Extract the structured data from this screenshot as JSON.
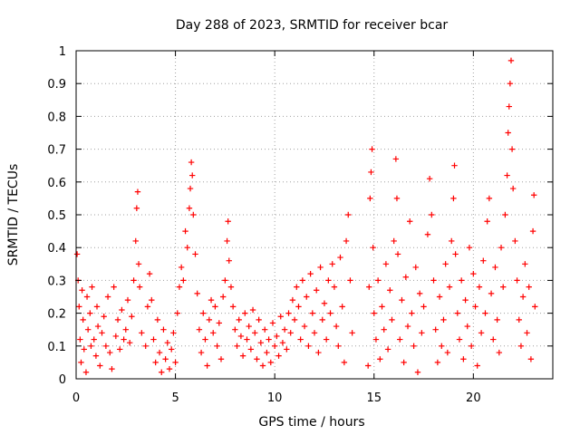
{
  "chart_data": {
    "type": "scatter",
    "title": "Day 288 of 2023, SRMTID for receiver bcar",
    "xlabel": "GPS time / hours",
    "ylabel": "SRMTID / TECUs",
    "xlim": [
      0,
      24
    ],
    "ylim": [
      0,
      1
    ],
    "xticks": [
      0,
      5,
      10,
      15,
      20
    ],
    "xtick_labels": [
      "0",
      "5",
      "10",
      "15",
      "20"
    ],
    "yticks": [
      0,
      0.1,
      0.2,
      0.3,
      0.4,
      0.5,
      0.6,
      0.7,
      0.8,
      0.9,
      1
    ],
    "ytick_labels": [
      "0",
      "0.1",
      "0.2",
      "0.3",
      "0.4",
      "0.5",
      "0.6",
      "0.7",
      "0.8",
      "0.9",
      "1"
    ],
    "grid": true,
    "marker": "+",
    "color": "#ff0000",
    "series": [
      {
        "name": "SRMTID",
        "points": [
          [
            0.05,
            0.38
          ],
          [
            0.1,
            0.3
          ],
          [
            0.15,
            0.22
          ],
          [
            0.2,
            0.12
          ],
          [
            0.25,
            0.05
          ],
          [
            0.3,
            0.27
          ],
          [
            0.35,
            0.18
          ],
          [
            0.4,
            0.09
          ],
          [
            0.5,
            0.02
          ],
          [
            0.55,
            0.25
          ],
          [
            0.6,
            0.15
          ],
          [
            0.7,
            0.2
          ],
          [
            0.75,
            0.1
          ],
          [
            0.8,
            0.28
          ],
          [
            0.9,
            0.12
          ],
          [
            1.0,
            0.07
          ],
          [
            1.05,
            0.22
          ],
          [
            1.1,
            0.16
          ],
          [
            1.2,
            0.04
          ],
          [
            1.3,
            0.14
          ],
          [
            1.4,
            0.19
          ],
          [
            1.5,
            0.1
          ],
          [
            1.6,
            0.25
          ],
          [
            1.7,
            0.08
          ],
          [
            1.8,
            0.03
          ],
          [
            1.9,
            0.28
          ],
          [
            2.0,
            0.13
          ],
          [
            2.1,
            0.18
          ],
          [
            2.2,
            0.09
          ],
          [
            2.3,
            0.21
          ],
          [
            2.4,
            0.12
          ],
          [
            2.5,
            0.15
          ],
          [
            2.6,
            0.24
          ],
          [
            2.7,
            0.11
          ],
          [
            2.8,
            0.19
          ],
          [
            2.9,
            0.3
          ],
          [
            3.0,
            0.42
          ],
          [
            3.05,
            0.52
          ],
          [
            3.1,
            0.57
          ],
          [
            3.15,
            0.35
          ],
          [
            3.2,
            0.28
          ],
          [
            3.3,
            0.14
          ],
          [
            3.5,
            0.1
          ],
          [
            3.6,
            0.22
          ],
          [
            3.7,
            0.32
          ],
          [
            3.8,
            0.24
          ],
          [
            3.9,
            0.12
          ],
          [
            4.0,
            0.05
          ],
          [
            4.1,
            0.18
          ],
          [
            4.2,
            0.08
          ],
          [
            4.3,
            0.02
          ],
          [
            4.4,
            0.15
          ],
          [
            4.5,
            0.06
          ],
          [
            4.6,
            0.11
          ],
          [
            4.7,
            0.03
          ],
          [
            4.8,
            0.09
          ],
          [
            4.9,
            0.14
          ],
          [
            5.0,
            0.05
          ],
          [
            5.1,
            0.2
          ],
          [
            5.2,
            0.28
          ],
          [
            5.3,
            0.34
          ],
          [
            5.4,
            0.3
          ],
          [
            5.5,
            0.45
          ],
          [
            5.6,
            0.4
          ],
          [
            5.7,
            0.52
          ],
          [
            5.75,
            0.58
          ],
          [
            5.8,
            0.66
          ],
          [
            5.85,
            0.62
          ],
          [
            5.9,
            0.5
          ],
          [
            6.0,
            0.38
          ],
          [
            6.1,
            0.26
          ],
          [
            6.2,
            0.15
          ],
          [
            6.3,
            0.08
          ],
          [
            6.4,
            0.2
          ],
          [
            6.5,
            0.12
          ],
          [
            6.6,
            0.04
          ],
          [
            6.7,
            0.18
          ],
          [
            6.8,
            0.24
          ],
          [
            6.9,
            0.14
          ],
          [
            7.0,
            0.22
          ],
          [
            7.1,
            0.1
          ],
          [
            7.2,
            0.17
          ],
          [
            7.3,
            0.06
          ],
          [
            7.4,
            0.25
          ],
          [
            7.5,
            0.3
          ],
          [
            7.6,
            0.42
          ],
          [
            7.65,
            0.48
          ],
          [
            7.7,
            0.36
          ],
          [
            7.8,
            0.28
          ],
          [
            7.9,
            0.22
          ],
          [
            8.0,
            0.15
          ],
          [
            8.1,
            0.1
          ],
          [
            8.2,
            0.18
          ],
          [
            8.3,
            0.13
          ],
          [
            8.4,
            0.07
          ],
          [
            8.5,
            0.2
          ],
          [
            8.6,
            0.12
          ],
          [
            8.7,
            0.16
          ],
          [
            8.8,
            0.09
          ],
          [
            8.9,
            0.21
          ],
          [
            9.0,
            0.14
          ],
          [
            9.1,
            0.06
          ],
          [
            9.2,
            0.18
          ],
          [
            9.3,
            0.11
          ],
          [
            9.4,
            0.04
          ],
          [
            9.5,
            0.15
          ],
          [
            9.6,
            0.08
          ],
          [
            9.7,
            0.12
          ],
          [
            9.8,
            0.05
          ],
          [
            9.9,
            0.17
          ],
          [
            10.0,
            0.1
          ],
          [
            10.1,
            0.13
          ],
          [
            10.2,
            0.07
          ],
          [
            10.3,
            0.19
          ],
          [
            10.4,
            0.11
          ],
          [
            10.5,
            0.15
          ],
          [
            10.6,
            0.09
          ],
          [
            10.7,
            0.2
          ],
          [
            10.8,
            0.14
          ],
          [
            10.9,
            0.24
          ],
          [
            11.0,
            0.18
          ],
          [
            11.1,
            0.28
          ],
          [
            11.2,
            0.22
          ],
          [
            11.3,
            0.12
          ],
          [
            11.4,
            0.3
          ],
          [
            11.5,
            0.16
          ],
          [
            11.6,
            0.25
          ],
          [
            11.7,
            0.1
          ],
          [
            11.8,
            0.32
          ],
          [
            11.9,
            0.2
          ],
          [
            12.0,
            0.14
          ],
          [
            12.1,
            0.27
          ],
          [
            12.2,
            0.08
          ],
          [
            12.3,
            0.34
          ],
          [
            12.4,
            0.18
          ],
          [
            12.5,
            0.23
          ],
          [
            12.6,
            0.12
          ],
          [
            12.7,
            0.3
          ],
          [
            12.8,
            0.2
          ],
          [
            12.9,
            0.35
          ],
          [
            13.0,
            0.28
          ],
          [
            13.1,
            0.16
          ],
          [
            13.2,
            0.1
          ],
          [
            13.3,
            0.37
          ],
          [
            13.4,
            0.22
          ],
          [
            13.5,
            0.05
          ],
          [
            13.6,
            0.42
          ],
          [
            13.7,
            0.5
          ],
          [
            13.8,
            0.3
          ],
          [
            13.9,
            0.14
          ],
          [
            14.7,
            0.04
          ],
          [
            14.75,
            0.28
          ],
          [
            14.8,
            0.55
          ],
          [
            14.85,
            0.63
          ],
          [
            14.9,
            0.7
          ],
          [
            14.95,
            0.4
          ],
          [
            15.0,
            0.2
          ],
          [
            15.1,
            0.12
          ],
          [
            15.2,
            0.3
          ],
          [
            15.3,
            0.06
          ],
          [
            15.4,
            0.22
          ],
          [
            15.5,
            0.15
          ],
          [
            15.6,
            0.35
          ],
          [
            15.7,
            0.09
          ],
          [
            15.8,
            0.27
          ],
          [
            15.9,
            0.18
          ],
          [
            16.0,
            0.42
          ],
          [
            16.1,
            0.67
          ],
          [
            16.15,
            0.55
          ],
          [
            16.2,
            0.38
          ],
          [
            16.3,
            0.12
          ],
          [
            16.4,
            0.24
          ],
          [
            16.5,
            0.05
          ],
          [
            16.6,
            0.31
          ],
          [
            16.7,
            0.16
          ],
          [
            16.8,
            0.48
          ],
          [
            16.9,
            0.2
          ],
          [
            17.0,
            0.1
          ],
          [
            17.1,
            0.34
          ],
          [
            17.2,
            0.02
          ],
          [
            17.3,
            0.26
          ],
          [
            17.4,
            0.14
          ],
          [
            17.5,
            0.22
          ],
          [
            17.7,
            0.44
          ],
          [
            17.8,
            0.61
          ],
          [
            17.9,
            0.5
          ],
          [
            18.0,
            0.3
          ],
          [
            18.1,
            0.15
          ],
          [
            18.2,
            0.05
          ],
          [
            18.3,
            0.25
          ],
          [
            18.4,
            0.1
          ],
          [
            18.5,
            0.18
          ],
          [
            18.6,
            0.35
          ],
          [
            18.7,
            0.08
          ],
          [
            18.8,
            0.28
          ],
          [
            18.9,
            0.42
          ],
          [
            19.0,
            0.55
          ],
          [
            19.05,
            0.65
          ],
          [
            19.1,
            0.38
          ],
          [
            19.2,
            0.2
          ],
          [
            19.3,
            0.12
          ],
          [
            19.4,
            0.3
          ],
          [
            19.5,
            0.06
          ],
          [
            19.6,
            0.24
          ],
          [
            19.7,
            0.16
          ],
          [
            19.8,
            0.4
          ],
          [
            19.9,
            0.1
          ],
          [
            20.0,
            0.32
          ],
          [
            20.1,
            0.22
          ],
          [
            20.2,
            0.04
          ],
          [
            20.3,
            0.28
          ],
          [
            20.4,
            0.14
          ],
          [
            20.5,
            0.36
          ],
          [
            20.6,
            0.2
          ],
          [
            20.7,
            0.48
          ],
          [
            20.8,
            0.55
          ],
          [
            20.9,
            0.26
          ],
          [
            21.0,
            0.12
          ],
          [
            21.1,
            0.34
          ],
          [
            21.2,
            0.18
          ],
          [
            21.3,
            0.08
          ],
          [
            21.4,
            0.4
          ],
          [
            21.5,
            0.28
          ],
          [
            21.6,
            0.5
          ],
          [
            21.7,
            0.62
          ],
          [
            21.75,
            0.75
          ],
          [
            21.8,
            0.83
          ],
          [
            21.85,
            0.9
          ],
          [
            21.9,
            0.97
          ],
          [
            21.95,
            0.7
          ],
          [
            22.0,
            0.58
          ],
          [
            22.1,
            0.42
          ],
          [
            22.2,
            0.3
          ],
          [
            22.3,
            0.18
          ],
          [
            22.4,
            0.1
          ],
          [
            22.5,
            0.25
          ],
          [
            22.6,
            0.35
          ],
          [
            22.7,
            0.14
          ],
          [
            22.8,
            0.28
          ],
          [
            22.9,
            0.06
          ],
          [
            23.0,
            0.45
          ],
          [
            23.05,
            0.56
          ],
          [
            23.1,
            0.22
          ]
        ]
      }
    ]
  }
}
